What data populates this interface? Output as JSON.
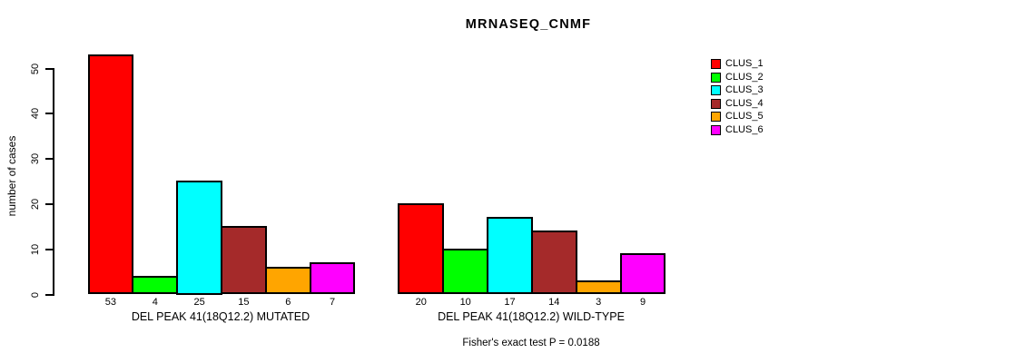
{
  "chart_data": {
    "type": "bar",
    "title": "MRNASEQ_CNMF",
    "xlabel": "",
    "ylabel": "number of cases",
    "ylim": [
      0,
      53
    ],
    "yticks": [
      0,
      10,
      20,
      30,
      40,
      50
    ],
    "grid": false,
    "legend_position": "right",
    "show_bar_value_labels": true,
    "categories": [
      "DEL PEAK 41(18Q12.2) MUTATED",
      "DEL PEAK 41(18Q12.2) WILD-TYPE"
    ],
    "series": [
      {
        "name": "CLUS_1",
        "color": "#FF0000",
        "values": [
          53,
          20
        ]
      },
      {
        "name": "CLUS_2",
        "color": "#00FF00",
        "values": [
          4,
          10
        ]
      },
      {
        "name": "CLUS_3",
        "color": "#00FFFF",
        "values": [
          25,
          17
        ]
      },
      {
        "name": "CLUS_4",
        "color": "#A52A2A",
        "values": [
          15,
          14
        ]
      },
      {
        "name": "CLUS_5",
        "color": "#FFA500",
        "values": [
          6,
          3
        ]
      },
      {
        "name": "CLUS_6",
        "color": "#FF00FF",
        "values": [
          7,
          9
        ]
      }
    ],
    "annotation": "Fisher's exact test P = 0.0188"
  }
}
